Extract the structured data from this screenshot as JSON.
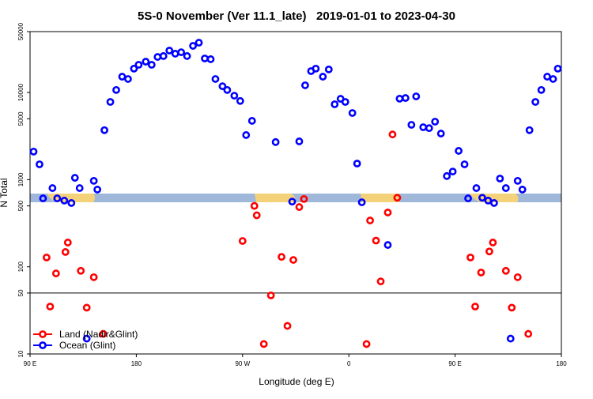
{
  "chart_data": {
    "type": "scatter",
    "title": "5S-0 November (Ver 11.1_late)   2019-01-01 to 2023-04-30",
    "xlabel": "Longitude (deg E)",
    "ylabel": "N Total",
    "log_y": true,
    "legend": "lower left",
    "reference_line": 50,
    "xlim": [
      90,
      540
    ],
    "ylim": [
      10,
      50000
    ],
    "xticks": [
      {
        "value": 90,
        "label": "90 E"
      },
      180,
      {
        "value": 270,
        "label": "90 W"
      },
      {
        "value": 360,
        "label": "0"
      },
      {
        "value": 450,
        "label": "90 E"
      },
      {
        "value": 540,
        "label": "180"
      }
    ],
    "yticks": [
      10,
      50,
      100,
      500,
      1000,
      5000,
      10000,
      50000
    ],
    "series": [
      {
        "name": "Land (Nadir&Glint)",
        "color": "#ff0000",
        "x": [
          104,
          107,
          112,
          120,
          122,
          133,
          138,
          144,
          152,
          270,
          280,
          282,
          288,
          294,
          303,
          308,
          313,
          318,
          322,
          375,
          378,
          383,
          387,
          393,
          397,
          401,
          463,
          467,
          472,
          479,
          482,
          493,
          498,
          503,
          512
        ],
        "values": [
          128,
          35,
          84,
          148,
          190,
          90,
          34,
          76,
          17,
          198,
          500,
          390,
          13,
          47,
          130,
          21,
          120,
          485,
          600,
          13,
          340,
          200,
          68,
          420,
          3300,
          620,
          128,
          35,
          86,
          150,
          190,
          90,
          34,
          76,
          17
        ]
      },
      {
        "name": "Ocean (Glint)",
        "color": "#0000ff",
        "x": [
          93,
          98,
          101,
          109,
          113,
          119,
          125,
          128,
          132,
          138,
          144,
          147,
          153,
          158,
          163,
          168,
          173,
          178,
          182,
          188,
          193,
          198,
          203,
          208,
          213,
          218,
          223,
          228,
          233,
          238,
          243,
          247,
          253,
          257,
          263,
          268,
          273,
          278,
          298,
          312,
          318,
          323,
          328,
          332,
          338,
          343,
          348,
          353,
          357,
          363,
          367,
          371,
          393,
          403,
          408,
          413,
          417,
          423,
          428,
          433,
          438,
          443,
          448,
          453,
          458,
          461,
          468,
          473,
          478,
          483,
          488,
          493,
          497,
          503,
          507,
          513,
          518,
          523,
          528,
          533,
          537
        ],
        "values": [
          2100,
          1500,
          610,
          800,
          610,
          575,
          540,
          1050,
          800,
          15,
          970,
          770,
          3700,
          7800,
          10700,
          15200,
          14300,
          18800,
          20800,
          22600,
          20800,
          25600,
          26200,
          30300,
          27900,
          29000,
          26200,
          34300,
          37300,
          24600,
          24100,
          14300,
          11800,
          10700,
          9200,
          8000,
          3250,
          4730,
          2700,
          560,
          2750,
          12100,
          17600,
          18800,
          15200,
          18400,
          7330,
          8470,
          7800,
          5820,
          1530,
          550,
          178,
          8500,
          8650,
          4260,
          9030,
          4000,
          3900,
          4630,
          3380,
          1100,
          1240,
          2140,
          1500,
          610,
          800,
          620,
          575,
          540,
          1030,
          800,
          15,
          970,
          770,
          3700,
          7800,
          10700,
          15200,
          14300,
          18800
        ]
      }
    ]
  }
}
